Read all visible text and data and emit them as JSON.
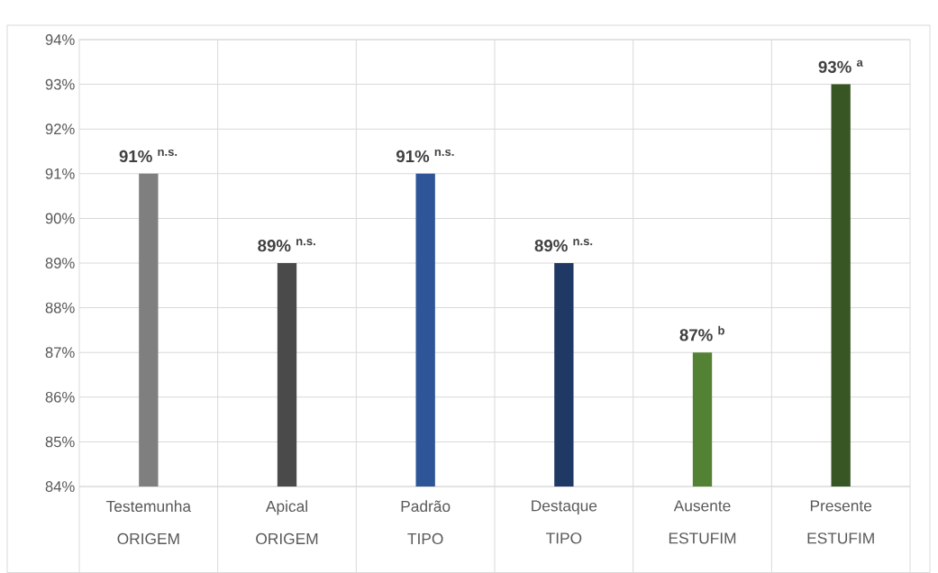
{
  "chart_data": {
    "type": "bar",
    "categories": [
      "Testemunha",
      "Apical",
      "Padrão",
      "Destaque",
      "Ausente",
      "Presente"
    ],
    "annotations": [
      "ORIGEM",
      "ORIGEM",
      "TIPO",
      "TIPO",
      "ESTUFIM",
      "ESTUFIM"
    ],
    "values": [
      91,
      89,
      91,
      89,
      87,
      93
    ],
    "colors": [
      "#7f7f7f",
      "#4a4a4a",
      "#2e5597",
      "#203864",
      "#548235",
      "#375623"
    ],
    "value_labels": [
      "91% $^{n.s.}$",
      "89% $^{n.s.}$",
      "91% $^{n.s.}$",
      "89% $^{n.s.}$",
      "87% $^{b}$",
      "93% $^{a}$"
    ],
    "ylim": [
      84,
      94
    ],
    "yticks": [
      {
        "value": 84,
        "label": "84%"
      },
      {
        "value": 85,
        "label": "85%"
      },
      {
        "value": 86,
        "label": "86%"
      },
      {
        "value": 87,
        "label": "87%"
      },
      {
        "value": 88,
        "label": "88%"
      },
      {
        "value": 89,
        "label": "89%"
      },
      {
        "value": 90,
        "label": "90%"
      },
      {
        "value": 91,
        "label": "91%"
      },
      {
        "value": 92,
        "label": "92%"
      },
      {
        "value": 93,
        "label": "93%"
      },
      {
        "value": 94,
        "label": "94%"
      }
    ],
    "grid": true
  }
}
